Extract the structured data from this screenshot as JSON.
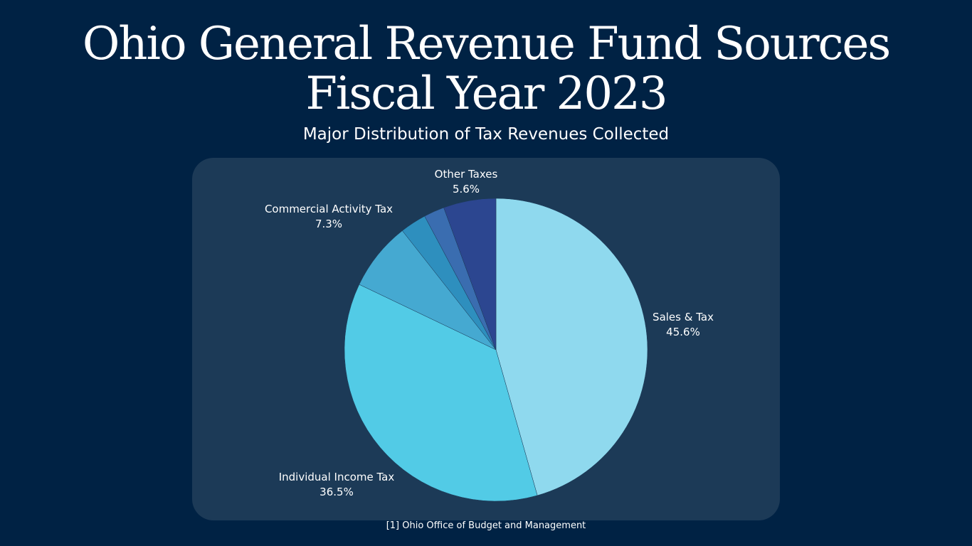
{
  "page": {
    "title_line1": "Ohio General Revenue Fund Sources",
    "title_line2": "Fiscal Year 2023",
    "subtitle": "Major Distribution of Tax Revenues Collected",
    "source": "[1] Ohio Office of Budget and Management"
  },
  "colors": {
    "background": "#002244",
    "panel": "#1c3a57"
  },
  "chart_data": {
    "type": "pie",
    "title": "Ohio General Revenue Fund Sources Fiscal Year 2023",
    "subtitle": "Major Distribution of Tax Revenues Collected",
    "slices": [
      {
        "label": "Sales & Tax",
        "value": 45.6,
        "value_label": "45.6%",
        "color": "#8fd9ee",
        "show_label": true
      },
      {
        "label": "Individual Income Tax",
        "value": 36.5,
        "value_label": "36.5%",
        "color": "#52cbe6",
        "show_label": true
      },
      {
        "label": "Commercial Activity Tax",
        "value": 7.3,
        "value_label": "7.3%",
        "color": "#45a9d1",
        "show_label": true
      },
      {
        "label": "",
        "value": 2.8,
        "value_label": "",
        "color": "#2e8fbe",
        "show_label": false
      },
      {
        "label": "",
        "value": 2.2,
        "value_label": "",
        "color": "#3a6db0",
        "show_label": false
      },
      {
        "label": "Other Taxes",
        "value": 5.6,
        "value_label": "5.6%",
        "color": "#2c4690",
        "show_label": true
      }
    ],
    "start": "12 o'clock",
    "direction": "clockwise",
    "legend": "none"
  }
}
